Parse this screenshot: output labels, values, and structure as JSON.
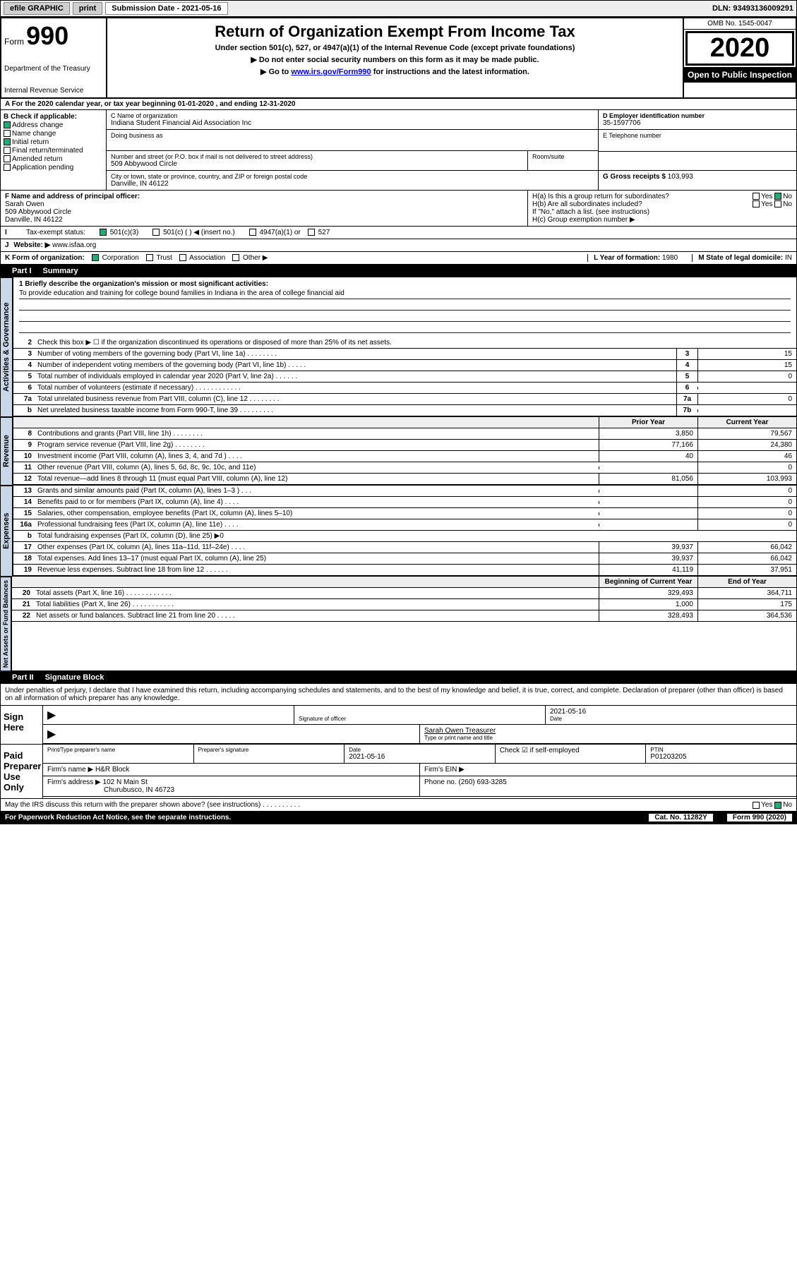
{
  "topbar": {
    "efile": "efile GRAPHIC",
    "print": "print",
    "subdate_label": "Submission Date - 2021-05-16",
    "dln": "DLN: 93493136009291"
  },
  "header": {
    "form_label": "Form",
    "form_number": "990",
    "dept1": "Department of the Treasury",
    "dept2": "Internal Revenue Service",
    "title": "Return of Organization Exempt From Income Tax",
    "sub1": "Under section 501(c), 527, or 4947(a)(1) of the Internal Revenue Code (except private foundations)",
    "sub2": "▶ Do not enter social security numbers on this form as it may be made public.",
    "sub3_pre": "▶ Go to ",
    "sub3_link": "www.irs.gov/Form990",
    "sub3_post": " for instructions and the latest information.",
    "omb": "OMB No. 1545-0047",
    "year": "2020",
    "otp": "Open to Public Inspection"
  },
  "row_a": "A   For the 2020 calendar year, or tax year beginning 01-01-2020    , and ending 12-31-2020",
  "col_b": {
    "hdr": "B Check if applicable:",
    "address": "Address change",
    "name": "Name change",
    "initial": "Initial return",
    "final": "Final return/terminated",
    "amended": "Amended return",
    "app": "Application pending"
  },
  "col_c": {
    "name_lbl": "C Name of organization",
    "name": "Indiana Student Financial Aid Association Inc",
    "dba_lbl": "Doing business as",
    "addr_lbl": "Number and street (or P.O. box if mail is not delivered to street address)",
    "addr": "509 Abbywood Circle",
    "room_lbl": "Room/suite",
    "city_lbl": "City or town, state or province, country, and ZIP or foreign postal code",
    "city": "Danville, IN  46122"
  },
  "col_d": {
    "lbl": "D Employer identification number",
    "val": "35-1597706"
  },
  "col_e": {
    "lbl": "E Telephone number",
    "val": ""
  },
  "col_g": {
    "lbl": "G Gross receipts $",
    "val": "103,993"
  },
  "sec_f": {
    "lbl": "F  Name and address of principal officer:",
    "name": "Sarah Owen",
    "addr": "509 Abbywood Circle",
    "city": "Danville, IN  46122"
  },
  "sec_h": {
    "ha": "H(a)  Is this a group return for subordinates?",
    "hb": "H(b)  Are all subordinates included?",
    "hb_note": "If \"No,\" attach a list. (see instructions)",
    "hc": "H(c)  Group exemption number ▶",
    "yes": "Yes",
    "no": "No"
  },
  "sec_i": {
    "lbl": "Tax-exempt status:",
    "c3": "501(c)(3)",
    "c": "501(c) (  ) ◀ (insert no.)",
    "a1": "4947(a)(1) or",
    "s527": "527"
  },
  "sec_j": {
    "lbl": "Website: ▶",
    "val": "www.isfaa.org"
  },
  "sec_k": {
    "lbl": "K Form of organization:",
    "corp": "Corporation",
    "trust": "Trust",
    "assoc": "Association",
    "other": "Other ▶",
    "l_lbl": "L Year of formation:",
    "l_val": "1980",
    "m_lbl": "M State of legal domicile:",
    "m_val": "IN"
  },
  "part1": {
    "num": "Part I",
    "title": "Summary"
  },
  "tabs": {
    "gov": "Activities & Governance",
    "rev": "Revenue",
    "exp": "Expenses",
    "net": "Net Assets or Fund Balances"
  },
  "summary": {
    "l1_lbl": "1  Briefly describe the organization's mission or most significant activities:",
    "l1_val": "To provide education and training for college bound families in Indiana in the area of college financial aid",
    "l2": "Check this box ▶ ☐  if the organization discontinued its operations or disposed of more than 25% of its net assets.",
    "lines_gov": [
      {
        "n": "3",
        "d": "Number of voting members of the governing body (Part VI, line 1a)   .    .    .    .    .    .    .    .",
        "b": "3",
        "a": "15"
      },
      {
        "n": "4",
        "d": "Number of independent voting members of the governing body (Part VI, line 1b)   .    .    .    .    .",
        "b": "4",
        "a": "15"
      },
      {
        "n": "5",
        "d": "Total number of individuals employed in calendar year 2020 (Part V, line 2a)   .    .    .    .    .    .",
        "b": "5",
        "a": "0"
      },
      {
        "n": "6",
        "d": "Total number of volunteers (estimate if necessary)   .    .    .    .    .    .    .    .    .    .    .    .",
        "b": "6",
        "a": ""
      },
      {
        "n": "7a",
        "d": "Total unrelated business revenue from Part VIII, column (C), line 12   .    .    .    .    .    .    .    .",
        "b": "7a",
        "a": "0"
      },
      {
        "n": "b",
        "d": "Net unrelated business taxable income from Form 990-T, line 39   .    .    .    .    .    .    .    .    .",
        "b": "7b",
        "a": ""
      }
    ],
    "hdr_prior": "Prior Year",
    "hdr_curr": "Current Year",
    "lines_rev": [
      {
        "n": "8",
        "d": "Contributions and grants (Part VIII, line 1h)   .    .    .    .    .    .    .    .",
        "p": "3,850",
        "c": "79,567"
      },
      {
        "n": "9",
        "d": "Program service revenue (Part VIII, line 2g)   .    .    .    .    .    .    .    .",
        "p": "77,166",
        "c": "24,380"
      },
      {
        "n": "10",
        "d": "Investment income (Part VIII, column (A), lines 3, 4, and 7d )   .    .    .    .",
        "p": "40",
        "c": "46"
      },
      {
        "n": "11",
        "d": "Other revenue (Part VIII, column (A), lines 5, 6d, 8c, 9c, 10c, and 11e)",
        "p": "",
        "c": "0"
      },
      {
        "n": "12",
        "d": "Total revenue—add lines 8 through 11 (must equal Part VIII, column (A), line 12)",
        "p": "81,056",
        "c": "103,993"
      }
    ],
    "lines_exp": [
      {
        "n": "13",
        "d": "Grants and similar amounts paid (Part IX, column (A), lines 1–3 )   .    .    .",
        "p": "",
        "c": "0"
      },
      {
        "n": "14",
        "d": "Benefits paid to or for members (Part IX, column (A), line 4)   .    .    .    .",
        "p": "",
        "c": "0"
      },
      {
        "n": "15",
        "d": "Salaries, other compensation, employee benefits (Part IX, column (A), lines 5–10)",
        "p": "",
        "c": "0"
      },
      {
        "n": "16a",
        "d": "Professional fundraising fees (Part IX, column (A), line 11e)   .    .    .    .",
        "p": "",
        "c": "0"
      },
      {
        "n": "b",
        "d": "Total fundraising expenses (Part IX, column (D), line 25) ▶0",
        "p": null,
        "c": null
      },
      {
        "n": "17",
        "d": "Other expenses (Part IX, column (A), lines 11a–11d, 11f–24e)   .    .    .    .",
        "p": "39,937",
        "c": "66,042"
      },
      {
        "n": "18",
        "d": "Total expenses. Add lines 13–17 (must equal Part IX, column (A), line 25)",
        "p": "39,937",
        "c": "66,042"
      },
      {
        "n": "19",
        "d": "Revenue less expenses. Subtract line 18 from line 12   .    .    .    .    .    .",
        "p": "41,119",
        "c": "37,951"
      }
    ],
    "hdr_beg": "Beginning of Current Year",
    "hdr_end": "End of Year",
    "lines_net": [
      {
        "n": "20",
        "d": "Total assets (Part X, line 16)   .    .    .    .    .    .    .    .    .    .    .    .",
        "p": "329,493",
        "c": "364,711"
      },
      {
        "n": "21",
        "d": "Total liabilities (Part X, line 26)   .    .    .    .    .    .    .    .    .    .    .",
        "p": "1,000",
        "c": "175"
      },
      {
        "n": "22",
        "d": "Net assets or fund balances. Subtract line 21 from line 20   .    .    .    .    .",
        "p": "328,493",
        "c": "364,536"
      }
    ]
  },
  "part2": {
    "num": "Part II",
    "title": "Signature Block"
  },
  "sig": {
    "decl": "Under penalties of perjury, I declare that I have examined this return, including accompanying schedules and statements, and to the best of my knowledge and belief, it is true, correct, and complete. Declaration of preparer (other than officer) is based on all information of which preparer has any knowledge.",
    "sign_here": "Sign Here",
    "sig_officer": "Signature of officer",
    "date": "2021-05-16",
    "date_lbl": "Date",
    "name": "Sarah Owen  Treasurer",
    "name_lbl": "Type or print name and title",
    "paid": "Paid Preparer Use Only",
    "pp_name_lbl": "Print/Type preparer's name",
    "pp_sig_lbl": "Preparer's signature",
    "pp_date_lbl": "Date",
    "pp_date": "2021-05-16",
    "pp_check": "Check ☑ if self-employed",
    "ptin_lbl": "PTIN",
    "ptin": "P01203205",
    "firm_name_lbl": "Firm's name   ▶",
    "firm_name": "H&R Block",
    "firm_ein_lbl": "Firm's EIN ▶",
    "firm_addr_lbl": "Firm's address ▶",
    "firm_addr": "102 N Main St",
    "firm_city": "Churubusco, IN  46723",
    "phone_lbl": "Phone no.",
    "phone": "(260) 693-3285",
    "discuss": "May the IRS discuss this return with the preparer shown above? (see instructions)   .    .    .    .    .    .    .    .    .    .",
    "yes": "Yes",
    "no": "No"
  },
  "footer": {
    "pra": "For Paperwork Reduction Act Notice, see the separate instructions.",
    "cat": "Cat. No. 11282Y",
    "form": "Form 990 (2020)"
  }
}
